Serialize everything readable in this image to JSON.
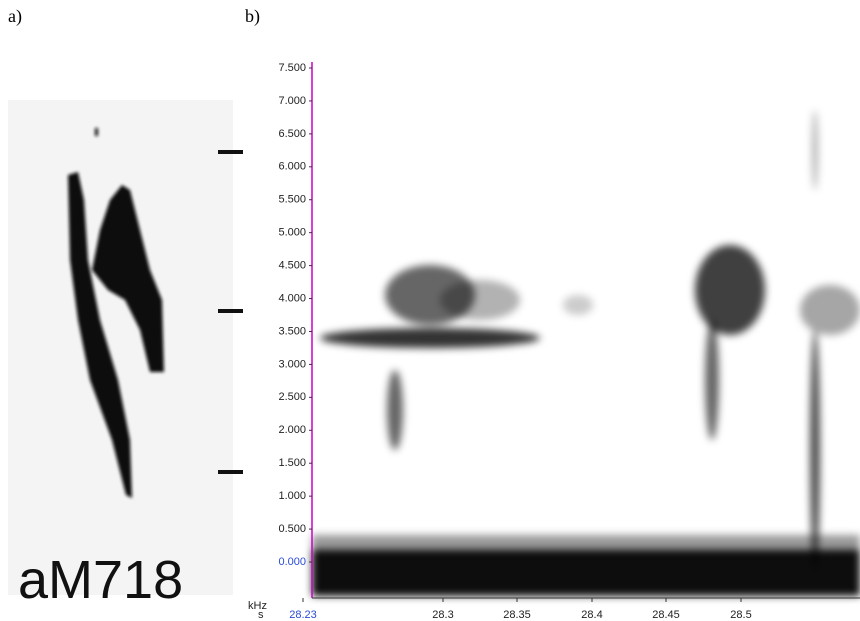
{
  "panels": [
    {
      "label": "a)",
      "caption": "aM718"
    },
    {
      "label": "b)",
      "y_unit": "kHz",
      "x_prefix": "s",
      "y_ticks": [
        "7.500",
        "7.000",
        "6.500",
        "6.000",
        "5.500",
        "5.000",
        "4.500",
        "4.000",
        "3.500",
        "3.000",
        "2.500",
        "2.000",
        "1.500",
        "1.000",
        "0.500",
        "0.000"
      ],
      "x_ticks": [
        "28.23",
        "28.3",
        "28.35",
        "28.4",
        "28.45",
        "28.5"
      ]
    }
  ]
}
